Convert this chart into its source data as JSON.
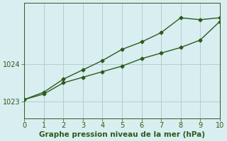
{
  "line1_x": [
    0,
    1,
    2,
    3,
    4,
    5,
    6,
    7,
    8,
    9,
    10
  ],
  "line1_y": [
    1023.05,
    1023.25,
    1023.6,
    1023.85,
    1024.1,
    1024.4,
    1024.6,
    1024.85,
    1025.25,
    1025.2,
    1025.25
  ],
  "line2_x": [
    0,
    1,
    2,
    3,
    4,
    5,
    6,
    7,
    8,
    9,
    10
  ],
  "line2_y": [
    1023.05,
    1023.2,
    1023.5,
    1023.65,
    1023.8,
    1023.95,
    1024.15,
    1024.3,
    1024.45,
    1024.65,
    1025.15
  ],
  "line_color": "#2d5a1b",
  "marker": "D",
  "markersize": 2.5,
  "background_color": "#d8eef0",
  "grid_color": "#aacccc",
  "xlabel": "Graphe pression niveau de la mer (hPa)",
  "xlabel_color": "#2d5a1b",
  "xlabel_fontsize": 7.5,
  "tick_color": "#2d5a1b",
  "tick_fontsize": 7,
  "xlim": [
    0,
    10
  ],
  "ylim": [
    1022.55,
    1025.65
  ],
  "yticks": [
    1023,
    1024
  ],
  "xticks": [
    0,
    1,
    2,
    3,
    4,
    5,
    6,
    7,
    8,
    9,
    10
  ],
  "linewidth": 1.0
}
